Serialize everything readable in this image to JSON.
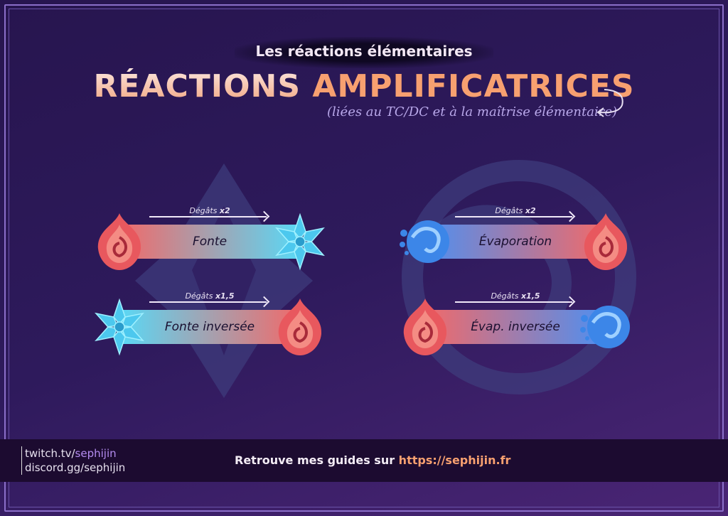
{
  "header": {
    "subtitle": "Les réactions élémentaires",
    "title_part1": "RÉACTIONS",
    "title_part2": "AMPLIFICATRICES",
    "note": "(liées au TC/DC et à la maîtrise élémentaire)"
  },
  "reactions": [
    {
      "name": "Fonte",
      "damage_label": "Dégâts",
      "multiplier": "x2",
      "from": "pyro-icon",
      "to": "cryo-icon",
      "colors": [
        "#f06a6a",
        "#5ad8f5"
      ]
    },
    {
      "name": "Fonte inversée",
      "damage_label": "Dégâts",
      "multiplier": "x1,5",
      "from": "cryo-icon",
      "to": "pyro-icon",
      "colors": [
        "#5ad8f5",
        "#f06a6a"
      ]
    },
    {
      "name": "Évaporation",
      "damage_label": "Dégâts",
      "multiplier": "x2",
      "from": "hydro-icon",
      "to": "pyro-icon",
      "colors": [
        "#4f8ff0",
        "#f06a6a"
      ]
    },
    {
      "name": "Évap. inversée",
      "damage_label": "Dégâts",
      "multiplier": "x1,5",
      "from": "pyro-icon",
      "to": "hydro-icon",
      "colors": [
        "#f06a6a",
        "#4f8ff0"
      ]
    }
  ],
  "footer": {
    "twitch_prefix": "twitch.tv/",
    "twitch_name": "sephijin",
    "discord": "discord.gg/sephijin",
    "guide_text": "Retrouve mes guides sur",
    "guide_url": "https://sephijin.fr"
  }
}
